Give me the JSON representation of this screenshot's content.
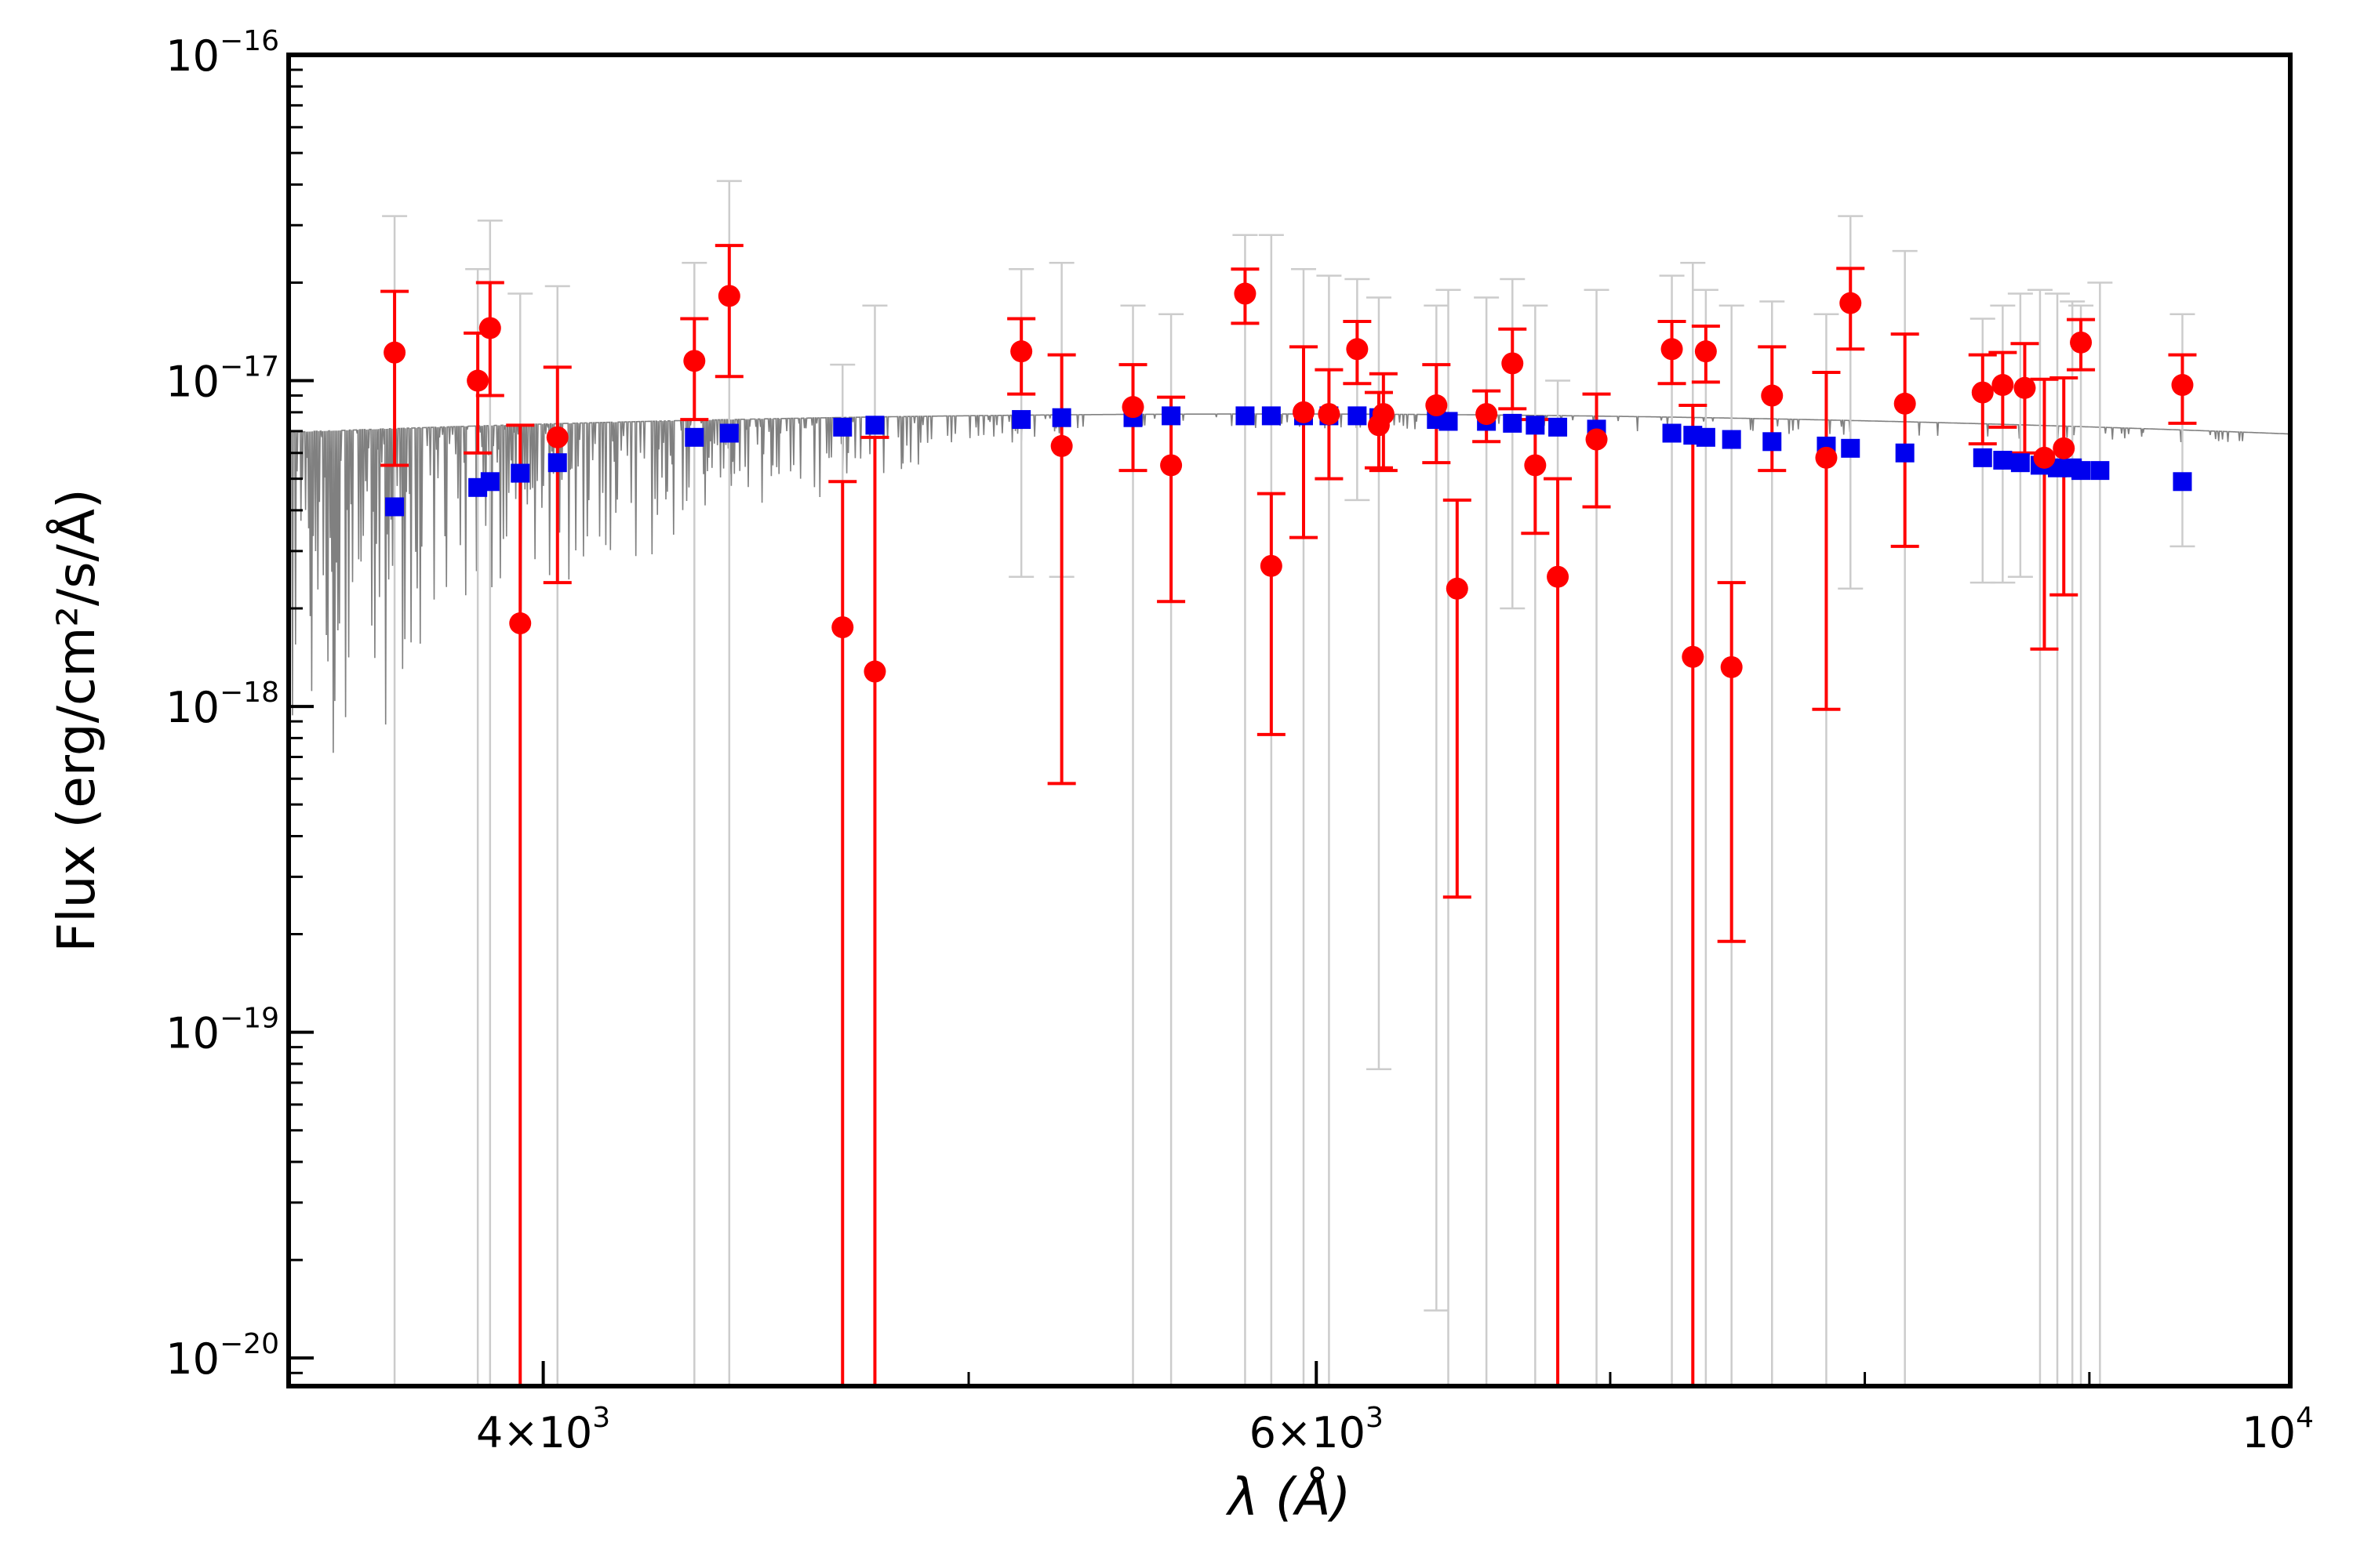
{
  "chart_data": {
    "type": "scatter",
    "title": "",
    "xlabel": "λ (Å)",
    "ylabel": "Flux (erg/cm²/s/Å)",
    "xscale": "log",
    "yscale": "log",
    "xlim": [
      3500,
      10000
    ],
    "ylim": [
      8.2e-21,
      1e-16
    ],
    "x_ticks": [
      {
        "value": 4000,
        "mant": "4",
        "exp": "3"
      },
      {
        "value": 6000,
        "mant": "6",
        "exp": "3"
      },
      {
        "value": 10000,
        "mant": "",
        "exp": "4"
      }
    ],
    "y_ticks": [
      {
        "value": 1e-20,
        "exp": "−20"
      },
      {
        "value": 1e-19,
        "exp": "−19"
      },
      {
        "value": 1e-18,
        "exp": "−18"
      },
      {
        "value": 1e-17,
        "exp": "−17"
      },
      {
        "value": 1e-16,
        "exp": "−16"
      }
    ],
    "legend": "none",
    "grid": false,
    "series": [
      {
        "name": "model spectrum",
        "type": "line",
        "color": "#808080",
        "continuum": {
          "peak_flux": 7.9e-18,
          "peak_wavelength": 5850,
          "curvature": 2.6
        },
        "description": "synthetic stellar spectrum with absorption lines, deeper toward the blue"
      },
      {
        "name": "model synthetic photometry",
        "type": "scatter",
        "marker": "square",
        "color": "#0000ee",
        "uncertainty_color": "#cccccc",
        "points": [
          {
            "x": 3700,
            "y": 4.1e-18,
            "lo": 0,
            "hi": 3.2e-17
          },
          {
            "x": 3865,
            "y": 4.7e-18,
            "lo": 0,
            "hi": 2.2e-17
          },
          {
            "x": 3890,
            "y": 4.9e-18,
            "lo": 0,
            "hi": 3.1e-17
          },
          {
            "x": 3952,
            "y": 5.2e-18,
            "lo": 0,
            "hi": 1.85e-17
          },
          {
            "x": 4030,
            "y": 5.6e-18,
            "lo": 0,
            "hi": 1.95e-17
          },
          {
            "x": 4330,
            "y": 6.7e-18,
            "lo": 0,
            "hi": 2.3e-17
          },
          {
            "x": 4410,
            "y": 6.9e-18,
            "lo": 0,
            "hi": 4.1e-17
          },
          {
            "x": 4680,
            "y": 7.2e-18,
            "lo": 0,
            "hi": 1.12e-17
          },
          {
            "x": 4760,
            "y": 7.3e-18,
            "lo": 0,
            "hi": 1.7e-17
          },
          {
            "x": 5140,
            "y": 7.6e-18,
            "lo": 2.5e-18,
            "hi": 2.2e-17
          },
          {
            "x": 5250,
            "y": 7.7e-18,
            "lo": 2.5e-18,
            "hi": 2.3e-17
          },
          {
            "x": 5450,
            "y": 7.7e-18,
            "lo": 0,
            "hi": 1.7e-17
          },
          {
            "x": 5560,
            "y": 7.8e-18,
            "lo": 0,
            "hi": 1.6e-17
          },
          {
            "x": 5780,
            "y": 7.8e-18,
            "lo": 0,
            "hi": 2.8e-17
          },
          {
            "x": 5860,
            "y": 7.8e-18,
            "lo": 0,
            "hi": 2.8e-17
          },
          {
            "x": 5960,
            "y": 7.8e-18,
            "lo": 0,
            "hi": 2.2e-17
          },
          {
            "x": 6040,
            "y": 7.8e-18,
            "lo": 0,
            "hi": 2.1e-17
          },
          {
            "x": 6130,
            "y": 7.8e-18,
            "lo": 4.3e-18,
            "hi": 2.05e-17
          },
          {
            "x": 6200,
            "y": 7.7e-18,
            "lo": 7.7e-20,
            "hi": 1.8e-17
          },
          {
            "x": 6390,
            "y": 7.6e-18,
            "lo": 1.4e-20,
            "hi": 1.7e-17
          },
          {
            "x": 6430,
            "y": 7.5e-18,
            "lo": 0,
            "hi": 1.9e-17
          },
          {
            "x": 6560,
            "y": 7.5e-18,
            "lo": 0,
            "hi": 1.8e-17
          },
          {
            "x": 6650,
            "y": 7.4e-18,
            "lo": 2e-18,
            "hi": 2.05e-17
          },
          {
            "x": 6730,
            "y": 7.3e-18,
            "lo": 0,
            "hi": 1.7e-17
          },
          {
            "x": 6810,
            "y": 7.2e-18,
            "lo": 0,
            "hi": 1e-17
          },
          {
            "x": 6950,
            "y": 7.1e-18,
            "lo": 0,
            "hi": 1.9e-17
          },
          {
            "x": 7230,
            "y": 6.9e-18,
            "lo": 0,
            "hi": 2.1e-17
          },
          {
            "x": 7310,
            "y": 6.8e-18,
            "lo": 0,
            "hi": 2.3e-17
          },
          {
            "x": 7360,
            "y": 6.7e-18,
            "lo": 0,
            "hi": 1.9e-17
          },
          {
            "x": 7460,
            "y": 6.6e-18,
            "lo": 0,
            "hi": 1.7e-17
          },
          {
            "x": 7620,
            "y": 6.5e-18,
            "lo": 0,
            "hi": 1.75e-17
          },
          {
            "x": 7840,
            "y": 6.3e-18,
            "lo": 0,
            "hi": 1.6e-17
          },
          {
            "x": 7940,
            "y": 6.2e-18,
            "lo": 2.3e-18,
            "hi": 3.2e-17
          },
          {
            "x": 8170,
            "y": 6e-18,
            "lo": 0,
            "hi": 2.5e-17
          },
          {
            "x": 8510,
            "y": 5.8e-18,
            "lo": 2.4e-18,
            "hi": 1.55e-17
          },
          {
            "x": 8600,
            "y": 5.7e-18,
            "lo": 2.4e-18,
            "hi": 1.7e-17
          },
          {
            "x": 8680,
            "y": 5.6e-18,
            "lo": 2.5e-18,
            "hi": 1.85e-17
          },
          {
            "x": 8770,
            "y": 5.5e-18,
            "lo": 0,
            "hi": 1.9e-17
          },
          {
            "x": 8850,
            "y": 5.4e-18,
            "lo": 0,
            "hi": 1.85e-17
          },
          {
            "x": 8920,
            "y": 5.4e-18,
            "lo": 0,
            "hi": 1.75e-17
          },
          {
            "x": 8960,
            "y": 5.3e-18,
            "lo": 0,
            "hi": 1.7e-17
          },
          {
            "x": 9050,
            "y": 5.3e-18,
            "lo": 0,
            "hi": 2e-17
          },
          {
            "x": 9450,
            "y": 4.9e-18,
            "lo": 3.1e-18,
            "hi": 1.6e-17
          }
        ]
      },
      {
        "name": "observed photometry",
        "type": "scatter",
        "marker": "circle",
        "color": "#ff0000",
        "points": [
          {
            "x": 3700,
            "y": 1.22e-17,
            "lo": 5.5e-18,
            "hi": 1.88e-17
          },
          {
            "x": 3865,
            "y": 1e-17,
            "lo": 6e-18,
            "hi": 1.4e-17
          },
          {
            "x": 3890,
            "y": 1.45e-17,
            "lo": 9e-18,
            "hi": 2e-17
          },
          {
            "x": 3952,
            "y": 1.8e-18,
            "lo": 0,
            "hi": 7.3e-18
          },
          {
            "x": 4030,
            "y": 6.7e-18,
            "lo": 2.4e-18,
            "hi": 1.1e-17
          },
          {
            "x": 4330,
            "y": 1.15e-17,
            "lo": 7.6e-18,
            "hi": 1.55e-17
          },
          {
            "x": 4410,
            "y": 1.82e-17,
            "lo": 1.03e-17,
            "hi": 2.6e-17
          },
          {
            "x": 4680,
            "y": 1.75e-18,
            "lo": 0,
            "hi": 4.9e-18
          },
          {
            "x": 4760,
            "y": 1.28e-18,
            "lo": 0,
            "hi": 6.7e-18
          },
          {
            "x": 5140,
            "y": 1.23e-17,
            "lo": 9.1e-18,
            "hi": 1.55e-17
          },
          {
            "x": 5250,
            "y": 6.3e-18,
            "lo": 5.8e-19,
            "hi": 1.2e-17
          },
          {
            "x": 5450,
            "y": 8.3e-18,
            "lo": 5.3e-18,
            "hi": 1.12e-17
          },
          {
            "x": 5560,
            "y": 5.5e-18,
            "lo": 2.1e-18,
            "hi": 8.9e-18
          },
          {
            "x": 5780,
            "y": 1.85e-17,
            "lo": 1.5e-17,
            "hi": 2.2e-17
          },
          {
            "x": 5860,
            "y": 2.7e-18,
            "lo": 8.2e-19,
            "hi": 4.5e-18
          },
          {
            "x": 5960,
            "y": 8e-18,
            "lo": 3.3e-18,
            "hi": 1.27e-17
          },
          {
            "x": 6040,
            "y": 7.9e-18,
            "lo": 5e-18,
            "hi": 1.08e-17
          },
          {
            "x": 6130,
            "y": 1.25e-17,
            "lo": 9.8e-18,
            "hi": 1.52e-17
          },
          {
            "x": 6200,
            "y": 7.3e-18,
            "lo": 5.4e-18,
            "hi": 9.2e-18
          },
          {
            "x": 6215,
            "y": 7.9e-18,
            "lo": 5.3e-18,
            "hi": 1.05e-17
          },
          {
            "x": 6390,
            "y": 8.4e-18,
            "lo": 5.6e-18,
            "hi": 1.12e-17
          },
          {
            "x": 6460,
            "y": 2.3e-18,
            "lo": 2.6e-19,
            "hi": 4.3e-18
          },
          {
            "x": 6560,
            "y": 7.9e-18,
            "lo": 6.5e-18,
            "hi": 9.3e-18
          },
          {
            "x": 6650,
            "y": 1.13e-17,
            "lo": 8.2e-18,
            "hi": 1.44e-17
          },
          {
            "x": 6730,
            "y": 5.5e-18,
            "lo": 3.4e-18,
            "hi": 7.6e-18
          },
          {
            "x": 6810,
            "y": 2.5e-18,
            "lo": 0,
            "hi": 5e-18
          },
          {
            "x": 6950,
            "y": 6.6e-18,
            "lo": 4.1e-18,
            "hi": 9.1e-18
          },
          {
            "x": 7230,
            "y": 1.25e-17,
            "lo": 9.8e-18,
            "hi": 1.52e-17
          },
          {
            "x": 7310,
            "y": 1.42e-18,
            "lo": 0,
            "hi": 8.4e-18
          },
          {
            "x": 7360,
            "y": 1.23e-17,
            "lo": 9.9e-18,
            "hi": 1.47e-17
          },
          {
            "x": 7460,
            "y": 1.32e-18,
            "lo": 1.9e-19,
            "hi": 2.4e-18
          },
          {
            "x": 7620,
            "y": 9e-18,
            "lo": 5.3e-18,
            "hi": 1.27e-17
          },
          {
            "x": 7840,
            "y": 5.8e-18,
            "lo": 9.8e-19,
            "hi": 1.06e-17
          },
          {
            "x": 7940,
            "y": 1.73e-17,
            "lo": 1.25e-17,
            "hi": 2.21e-17
          },
          {
            "x": 8170,
            "y": 8.5e-18,
            "lo": 3.1e-18,
            "hi": 1.39e-17
          },
          {
            "x": 8510,
            "y": 9.2e-18,
            "lo": 6.4e-18,
            "hi": 1.2e-17
          },
          {
            "x": 8600,
            "y": 9.7e-18,
            "lo": 7.2e-18,
            "hi": 1.22e-17
          },
          {
            "x": 8700,
            "y": 9.5e-18,
            "lo": 6e-18,
            "hi": 1.3e-17
          },
          {
            "x": 8790,
            "y": 5.8e-18,
            "lo": 1.5e-18,
            "hi": 1.01e-17
          },
          {
            "x": 8880,
            "y": 6.2e-18,
            "lo": 2.2e-18,
            "hi": 1.02e-17
          },
          {
            "x": 8960,
            "y": 1.31e-17,
            "lo": 1.08e-17,
            "hi": 1.54e-17
          },
          {
            "x": 9450,
            "y": 9.7e-18,
            "lo": 7.4e-18,
            "hi": 1.2e-17
          }
        ]
      }
    ]
  }
}
